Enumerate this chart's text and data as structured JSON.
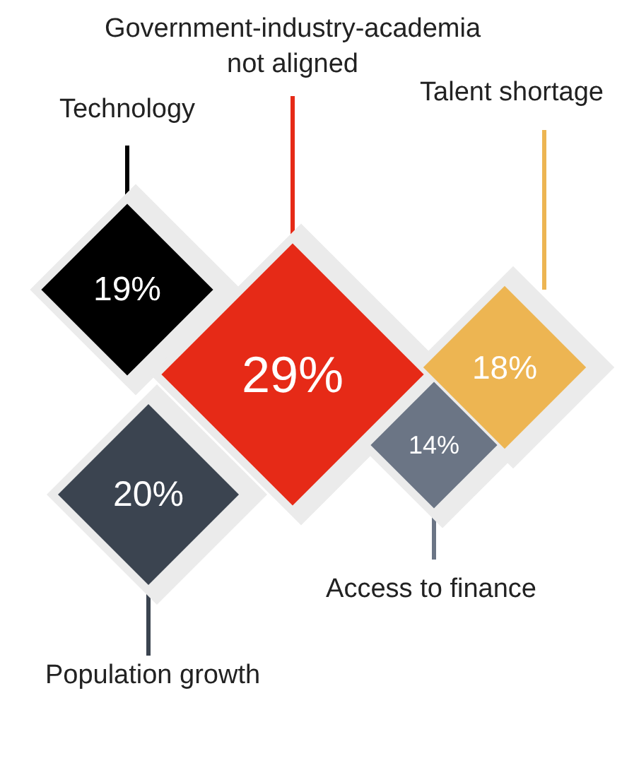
{
  "chart_data": {
    "type": "other",
    "categories": [
      "Technology",
      "Government-industry-academia\nnot aligned",
      "Talent shortage",
      "Population growth",
      "Access to finance"
    ],
    "values": [
      19,
      29,
      18,
      20,
      14
    ],
    "value_labels": [
      "19%",
      "29%",
      "18%",
      "20%",
      "14%"
    ],
    "colors": [
      "#000000",
      "#e62a17",
      "#edb552",
      "#3b4450",
      "#6b7585"
    ]
  }
}
